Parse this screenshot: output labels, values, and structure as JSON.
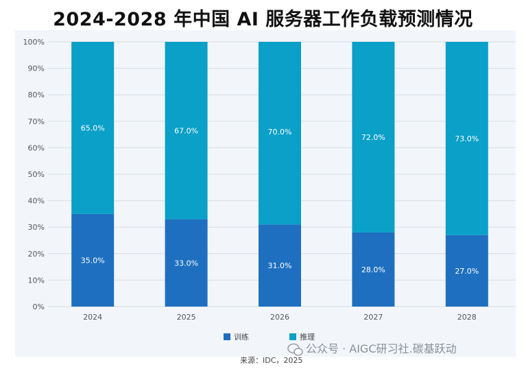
{
  "title": "2024-2028 年中国 AI 服务器工作负载预测情况",
  "source": "来源：IDC，2025",
  "watermark": "公众号 · AIGC研习社.碳基跃动",
  "chart_data": {
    "type": "bar",
    "stacked": true,
    "categories": [
      "2024",
      "2025",
      "2026",
      "2027",
      "2028"
    ],
    "series": [
      {
        "name": "训练",
        "values": [
          35.0,
          33.0,
          31.0,
          28.0,
          27.0
        ],
        "labels": [
          "35.0%",
          "33.0%",
          "31.0%",
          "28.0%",
          "27.0%"
        ],
        "color": "#1e6fbf"
      },
      {
        "name": "推理",
        "values": [
          65.0,
          67.0,
          70.0,
          72.0,
          73.0
        ],
        "labels": [
          "65.0%",
          "67.0%",
          "70.0%",
          "72.0%",
          "73.0%"
        ],
        "color": "#0aa0c8"
      }
    ],
    "ylim": [
      0,
      100
    ],
    "yticks": [
      "0%",
      "10%",
      "20%",
      "30%",
      "40%",
      "50%",
      "60%",
      "70%",
      "80%",
      "90%",
      "100%"
    ],
    "grid": true,
    "legend_position": "bottom"
  }
}
